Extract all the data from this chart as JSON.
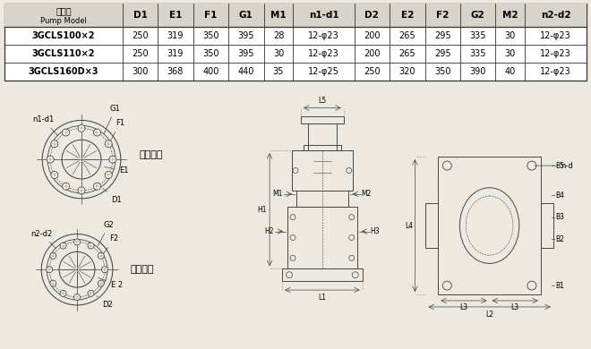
{
  "bg_color": "#ede8e0",
  "table_headers": [
    "泵型号\nPump Model",
    "D1",
    "E1",
    "F1",
    "G1",
    "M1",
    "n1-d1",
    "D2",
    "E2",
    "F2",
    "G2",
    "M2",
    "n2-d2"
  ],
  "rows": [
    [
      "3GCLS100×2",
      "250",
      "319",
      "350",
      "395",
      "28",
      "12-φ23",
      "200",
      "265",
      "295",
      "335",
      "30",
      "12-φ23"
    ],
    [
      "3GCLS110×2",
      "250",
      "319",
      "350",
      "395",
      "30",
      "12-φ23",
      "200",
      "265",
      "295",
      "335",
      "30",
      "12-φ23"
    ],
    [
      "3GCLS160D×3",
      "300",
      "368",
      "400",
      "440",
      "35",
      "12-φ25",
      "250",
      "320",
      "350",
      "390",
      "40",
      "12-φ23"
    ]
  ],
  "label_inlet": "进口法兰",
  "label_outlet": "出口法兰",
  "draw_color": "#444444"
}
